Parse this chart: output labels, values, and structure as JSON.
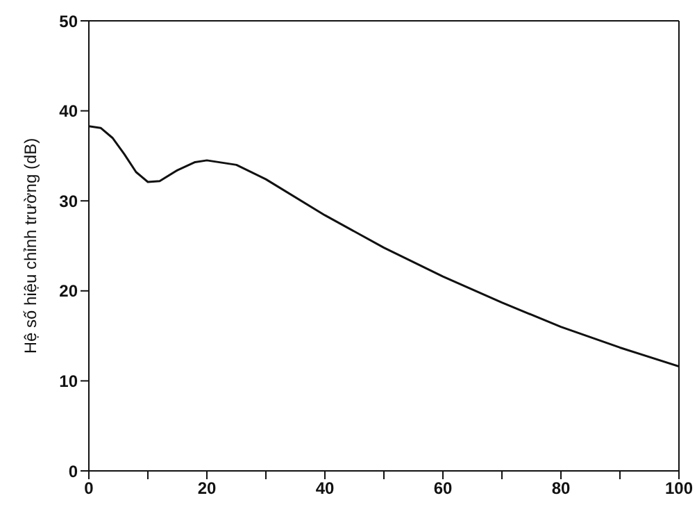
{
  "chart_data": {
    "type": "line",
    "ylabel": "Hệ số hiệu chỉnh trường (dB)",
    "x": [
      0,
      2,
      4,
      6,
      8,
      10,
      12,
      15,
      18,
      20,
      25,
      30,
      40,
      50,
      60,
      70,
      80,
      90,
      100
    ],
    "series": [
      {
        "color": "#111111",
        "values": [
          38.3,
          38.1,
          37,
          35.2,
          33.2,
          32.1,
          32.2,
          33.4,
          34.3,
          34.5,
          34,
          32.4,
          28.4,
          24.8,
          21.6,
          18.7,
          16,
          13.7,
          11.6
        ]
      }
    ],
    "xlim": [
      0,
      100
    ],
    "xticks": [
      0,
      {
        "value": 10,
        "label": null
      },
      20,
      {
        "value": 30,
        "label": null
      },
      40,
      {
        "value": 50,
        "label": null
      },
      60,
      {
        "value": 70,
        "label": null
      },
      80,
      {
        "value": 90,
        "label": null
      },
      100
    ],
    "ylim": [
      0,
      50
    ],
    "yticks": [
      0,
      10,
      20,
      30,
      40,
      50
    ],
    "grid": false,
    "legend": false,
    "marker": "none",
    "line_style": "solid"
  }
}
